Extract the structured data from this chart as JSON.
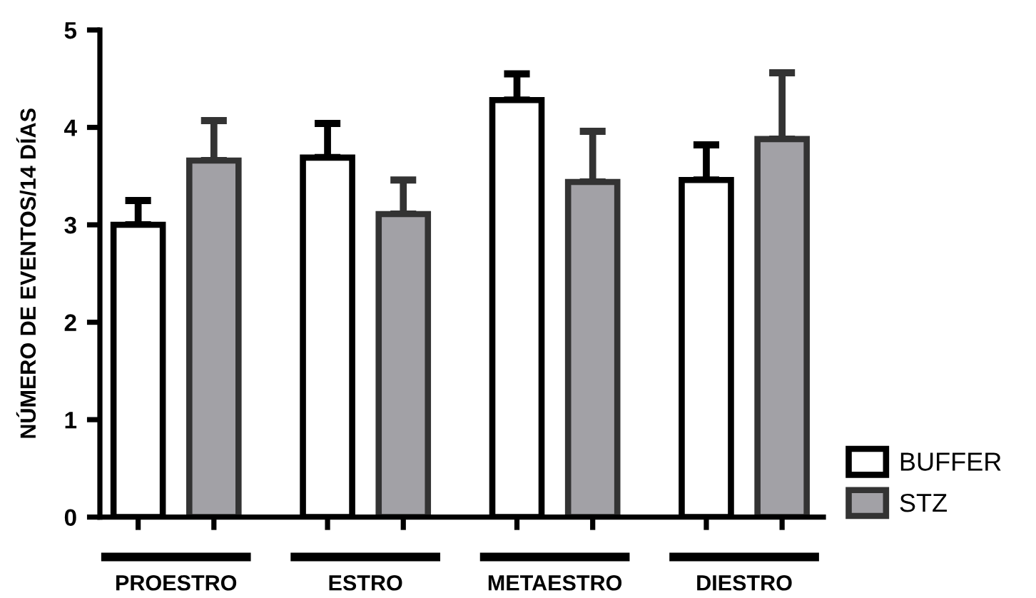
{
  "chart_data": {
    "type": "bar",
    "ylabel": "NÚMERO DE EVENTOS/14 DÍAS",
    "categories": [
      "PROESTRO",
      "ESTRO",
      "METAESTRO",
      "DIESTRO"
    ],
    "series": [
      {
        "name": "BUFFER",
        "color": "#ffffff",
        "values": [
          3.0,
          3.69,
          4.28,
          3.46
        ],
        "errors": [
          [
            3.0,
            3.25
          ],
          [
            3.69,
            4.04
          ],
          [
            4.28,
            4.55
          ],
          [
            3.46,
            3.82
          ]
        ]
      },
      {
        "name": "STZ",
        "color": "#a2a1a6",
        "values": [
          3.66,
          3.11,
          3.44,
          3.88
        ],
        "errors": [
          [
            3.66,
            4.07
          ],
          [
            3.11,
            3.46
          ],
          [
            3.44,
            3.96
          ],
          [
            3.88,
            4.56
          ]
        ]
      }
    ],
    "ylim": [
      0,
      5
    ],
    "yticks": [
      0,
      1,
      2,
      3,
      4,
      5
    ],
    "grid": false,
    "legend": "bottom right"
  }
}
